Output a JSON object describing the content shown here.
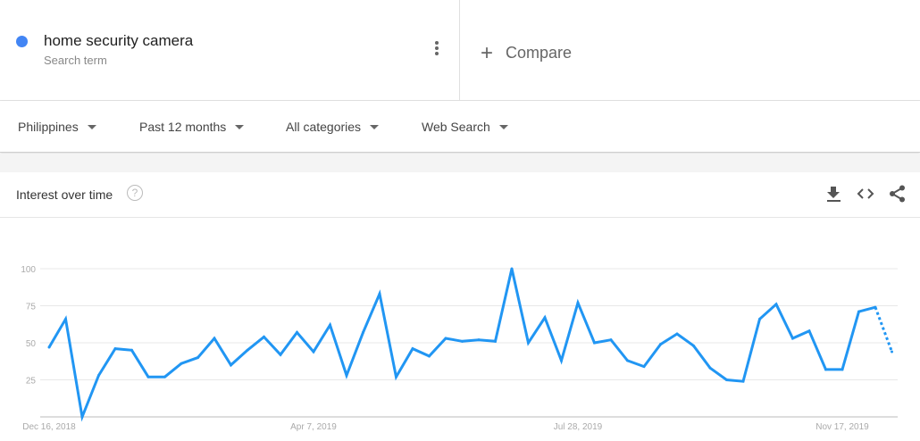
{
  "search_term": {
    "name": "home security camera",
    "type": "Search term",
    "color": "#4285f4",
    "menu_icon": "more-vert-icon"
  },
  "compare": {
    "label": "Compare",
    "icon": "plus-icon"
  },
  "filters": [
    {
      "label": "Philippines"
    },
    {
      "label": "Past 12 months"
    },
    {
      "label": "All categories"
    },
    {
      "label": "Web Search"
    }
  ],
  "card": {
    "title": "Interest over time",
    "help_icon": "help-icon",
    "tools": [
      "download-icon",
      "embed-code-icon",
      "share-icon"
    ]
  },
  "chart_data": {
    "type": "line",
    "title": "",
    "xlabel": "",
    "ylabel": "",
    "ylim": [
      0,
      100
    ],
    "yticks": [
      25,
      50,
      75,
      100
    ],
    "xtick_labels": [
      {
        "label": "Dec 16, 2018",
        "index": 0
      },
      {
        "label": "Apr 7, 2019",
        "index": 16
      },
      {
        "label": "Jul 28, 2019",
        "index": 32
      },
      {
        "label": "Nov 17, 2019",
        "index": 48
      }
    ],
    "grid": true,
    "line_color": "#2196f3",
    "partial_last_point": true,
    "series": [
      {
        "values": [
          47,
          66,
          0,
          28,
          46,
          45,
          27,
          27,
          36,
          40,
          53,
          35,
          45,
          54,
          42,
          57,
          44,
          62,
          28,
          57,
          83,
          27,
          46,
          41,
          53,
          51,
          52,
          51,
          100,
          50,
          67,
          38,
          77,
          50,
          52,
          38,
          34,
          49,
          56,
          48,
          33,
          25,
          24,
          66,
          76,
          53,
          58,
          32,
          32,
          71,
          74,
          44
        ]
      }
    ]
  }
}
